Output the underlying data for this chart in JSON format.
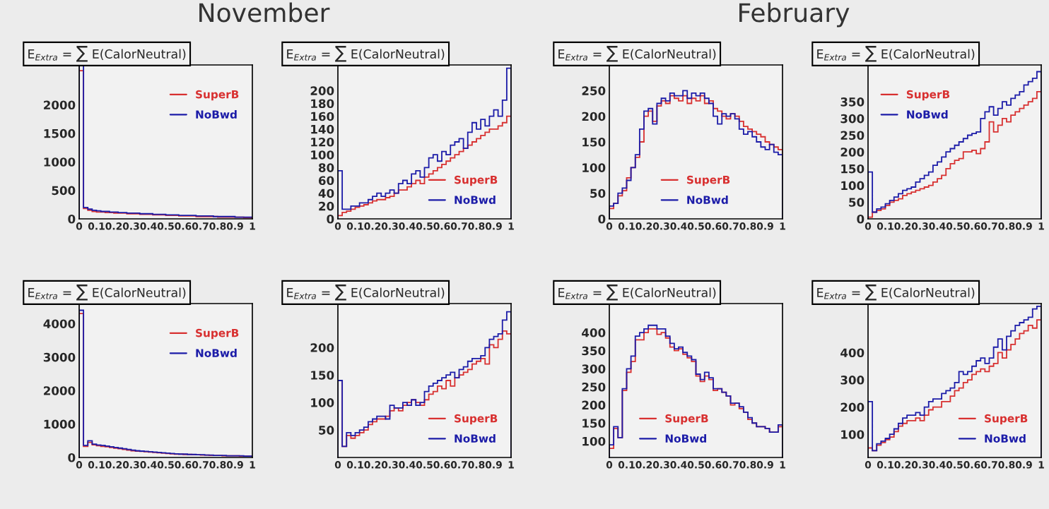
{
  "chart_data": [
    {
      "type": "histogram",
      "title": "E$_{Extra}$ = ∑ E(CalorNeutral)",
      "annotations": [
        "November"
      ],
      "legend": "top right",
      "xlim": [
        0,
        1
      ],
      "ylim": [
        0,
        2700
      ],
      "xticks": [
        0,
        0.1,
        0.2,
        0.3,
        0.4,
        0.5,
        0.6,
        0.7,
        0.8,
        0.9,
        1
      ],
      "yticks": [
        0,
        500,
        1000,
        1500,
        2000
      ],
      "bins": [
        0,
        0.025,
        0.05,
        0.075,
        0.1,
        0.125,
        0.15,
        0.175,
        0.2,
        0.225,
        0.25,
        0.275,
        0.3,
        0.325,
        0.35,
        0.375,
        0.4,
        0.425,
        0.45,
        0.475,
        0.5,
        0.525,
        0.55,
        0.575,
        0.6,
        0.625,
        0.65,
        0.675,
        0.7,
        0.725,
        0.75,
        0.775,
        0.8,
        0.825,
        0.85,
        0.875,
        0.9,
        0.925,
        0.95,
        0.975,
        1
      ],
      "series": [
        {
          "name": "SuperB",
          "color": "#d83030",
          "values": [
            2600,
            180,
            150,
            130,
            120,
            120,
            110,
            110,
            100,
            100,
            100,
            90,
            90,
            90,
            80,
            80,
            80,
            70,
            70,
            70,
            60,
            60,
            60,
            50,
            50,
            50,
            50,
            40,
            40,
            40,
            40,
            40,
            30,
            30,
            30,
            30,
            30,
            30,
            20,
            20
          ]
        },
        {
          "name": "NoBwd",
          "color": "#1c1ca8",
          "values": [
            2700,
            200,
            170,
            150,
            140,
            130,
            130,
            120,
            120,
            110,
            110,
            100,
            100,
            100,
            90,
            90,
            90,
            80,
            80,
            80,
            70,
            70,
            70,
            60,
            60,
            60,
            60,
            50,
            50,
            50,
            50,
            40,
            40,
            40,
            40,
            40,
            30,
            30,
            30,
            30
          ]
        }
      ]
    },
    {
      "type": "histogram",
      "title": "E$_{Extra}$ = ∑ E(CalorNeutral)",
      "legend": "bottom right",
      "xlim": [
        0,
        1
      ],
      "ylim": [
        0,
        240
      ],
      "xticks": [
        0,
        0.1,
        0.2,
        0.3,
        0.4,
        0.5,
        0.6,
        0.7,
        0.8,
        0.9,
        1
      ],
      "yticks": [
        0,
        20,
        40,
        60,
        80,
        100,
        120,
        140,
        160,
        180,
        200
      ],
      "bins": [
        0,
        0.025,
        0.05,
        0.075,
        0.1,
        0.125,
        0.15,
        0.175,
        0.2,
        0.225,
        0.25,
        0.275,
        0.3,
        0.325,
        0.35,
        0.375,
        0.4,
        0.425,
        0.45,
        0.475,
        0.5,
        0.525,
        0.55,
        0.575,
        0.6,
        0.625,
        0.65,
        0.675,
        0.7,
        0.725,
        0.75,
        0.775,
        0.8,
        0.825,
        0.85,
        0.875,
        0.9,
        0.925,
        0.95,
        0.975,
        1
      ],
      "series": [
        {
          "name": "SuperB",
          "color": "#d83030",
          "values": [
            5,
            10,
            12,
            15,
            18,
            20,
            22,
            25,
            28,
            30,
            30,
            33,
            35,
            40,
            45,
            45,
            50,
            55,
            60,
            55,
            65,
            70,
            75,
            80,
            85,
            90,
            95,
            100,
            105,
            110,
            115,
            120,
            125,
            130,
            135,
            140,
            140,
            145,
            150,
            160
          ]
        },
        {
          "name": "NoBwd",
          "color": "#1c1ca8",
          "values": [
            75,
            15,
            15,
            20,
            20,
            25,
            25,
            30,
            35,
            40,
            35,
            40,
            45,
            40,
            55,
            60,
            55,
            70,
            75,
            65,
            80,
            95,
            100,
            90,
            105,
            100,
            115,
            120,
            125,
            110,
            135,
            150,
            140,
            155,
            145,
            160,
            170,
            160,
            185,
            235
          ]
        }
      ]
    },
    {
      "type": "histogram",
      "title": "E$_{Extra}$ = ∑ E(CalorNeutral)",
      "annotations": [
        "February"
      ],
      "legend": "bottom",
      "xlim": [
        0,
        1
      ],
      "ylim": [
        0,
        300
      ],
      "xticks": [
        0,
        0.1,
        0.2,
        0.3,
        0.4,
        0.5,
        0.6,
        0.7,
        0.8,
        0.9,
        1
      ],
      "yticks": [
        0,
        50,
        100,
        150,
        200,
        250
      ],
      "bins": [
        0,
        0.025,
        0.05,
        0.075,
        0.1,
        0.125,
        0.15,
        0.175,
        0.2,
        0.225,
        0.25,
        0.275,
        0.3,
        0.325,
        0.35,
        0.375,
        0.4,
        0.425,
        0.45,
        0.475,
        0.5,
        0.525,
        0.55,
        0.575,
        0.6,
        0.625,
        0.65,
        0.675,
        0.7,
        0.725,
        0.75,
        0.775,
        0.8,
        0.825,
        0.85,
        0.875,
        0.9,
        0.925,
        0.95,
        0.975,
        1
      ],
      "series": [
        {
          "name": "SuperB",
          "color": "#d83030",
          "values": [
            20,
            30,
            45,
            55,
            80,
            100,
            120,
            150,
            200,
            210,
            190,
            220,
            230,
            225,
            240,
            235,
            230,
            240,
            225,
            235,
            230,
            240,
            225,
            230,
            215,
            210,
            200,
            195,
            205,
            200,
            190,
            180,
            175,
            170,
            165,
            160,
            150,
            145,
            140,
            135
          ]
        },
        {
          "name": "NoBwd",
          "color": "#1c1ca8",
          "values": [
            25,
            30,
            50,
            60,
            75,
            100,
            125,
            175,
            210,
            215,
            185,
            225,
            235,
            230,
            245,
            240,
            240,
            250,
            235,
            245,
            240,
            245,
            235,
            225,
            200,
            185,
            205,
            200,
            205,
            195,
            175,
            165,
            170,
            160,
            150,
            140,
            135,
            145,
            130,
            125
          ]
        }
      ]
    },
    {
      "type": "histogram",
      "title": "E$_{Extra}$ = ∑ E(CalorNeutral)",
      "legend": "top left",
      "xlim": [
        0,
        1
      ],
      "ylim": [
        0,
        460
      ],
      "xticks": [
        0,
        0.1,
        0.2,
        0.3,
        0.4,
        0.5,
        0.6,
        0.7,
        0.8,
        0.9,
        1
      ],
      "yticks": [
        0,
        50,
        100,
        150,
        200,
        250,
        300,
        350
      ],
      "bins": [
        0,
        0.025,
        0.05,
        0.075,
        0.1,
        0.125,
        0.15,
        0.175,
        0.2,
        0.225,
        0.25,
        0.275,
        0.3,
        0.325,
        0.35,
        0.375,
        0.4,
        0.425,
        0.45,
        0.475,
        0.5,
        0.525,
        0.55,
        0.575,
        0.6,
        0.625,
        0.65,
        0.675,
        0.7,
        0.725,
        0.75,
        0.775,
        0.8,
        0.825,
        0.85,
        0.875,
        0.9,
        0.925,
        0.95,
        0.975,
        1
      ],
      "series": [
        {
          "name": "SuperB",
          "color": "#d83030",
          "values": [
            5,
            20,
            25,
            30,
            40,
            50,
            55,
            60,
            70,
            75,
            80,
            85,
            90,
            95,
            100,
            110,
            120,
            130,
            150,
            165,
            175,
            180,
            200,
            200,
            205,
            195,
            210,
            230,
            290,
            260,
            280,
            300,
            290,
            310,
            320,
            330,
            340,
            350,
            360,
            380
          ]
        },
        {
          "name": "NoBwd",
          "color": "#1c1ca8",
          "values": [
            140,
            20,
            30,
            35,
            45,
            55,
            65,
            75,
            85,
            90,
            95,
            110,
            120,
            130,
            140,
            160,
            170,
            185,
            200,
            210,
            220,
            230,
            240,
            250,
            255,
            260,
            300,
            320,
            335,
            310,
            330,
            350,
            340,
            360,
            370,
            380,
            400,
            410,
            420,
            440
          ]
        }
      ]
    },
    {
      "type": "histogram",
      "title": "E$_{Extra}$ = ∑ E(CalorNeutral)",
      "legend": "top right",
      "xlim": [
        0,
        1
      ],
      "ylim": [
        0,
        4600
      ],
      "xticks": [
        0,
        0.1,
        0.2,
        0.3,
        0.4,
        0.5,
        0.6,
        0.7,
        0.8,
        0.9,
        1
      ],
      "yticks": [
        0,
        1000,
        2000,
        3000,
        4000
      ],
      "bins": [
        0,
        0.025,
        0.05,
        0.075,
        0.1,
        0.125,
        0.15,
        0.175,
        0.2,
        0.225,
        0.25,
        0.275,
        0.3,
        0.325,
        0.35,
        0.375,
        0.4,
        0.425,
        0.45,
        0.475,
        0.5,
        0.525,
        0.55,
        0.575,
        0.6,
        0.625,
        0.65,
        0.675,
        0.7,
        0.725,
        0.75,
        0.775,
        0.8,
        0.825,
        0.85,
        0.875,
        0.9,
        0.925,
        0.95,
        0.975,
        1
      ],
      "series": [
        {
          "name": "SuperB",
          "color": "#d83030",
          "values": [
            4300,
            330,
            450,
            380,
            350,
            330,
            320,
            300,
            280,
            260,
            240,
            220,
            200,
            190,
            180,
            170,
            160,
            150,
            140,
            130,
            120,
            110,
            100,
            100,
            90,
            90,
            80,
            80,
            70,
            70,
            60,
            60,
            60,
            50,
            50,
            50,
            50,
            40,
            40,
            40
          ]
        },
        {
          "name": "NoBwd",
          "color": "#1c1ca8",
          "values": [
            4400,
            360,
            500,
            400,
            370,
            360,
            340,
            320,
            300,
            280,
            260,
            240,
            220,
            200,
            190,
            180,
            170,
            160,
            150,
            140,
            130,
            120,
            110,
            100,
            100,
            90,
            90,
            80,
            80,
            70,
            70,
            60,
            60,
            60,
            50,
            50,
            50,
            50,
            40,
            40
          ]
        }
      ]
    },
    {
      "type": "histogram",
      "title": "E$_{Extra}$ = ∑ E(CalorNeutral)",
      "legend": "bottom right",
      "xlim": [
        0,
        1
      ],
      "ylim": [
        0,
        280
      ],
      "xticks": [
        0,
        0.1,
        0.2,
        0.3,
        0.4,
        0.5,
        0.6,
        0.7,
        0.8,
        0.9,
        1
      ],
      "yticks": [
        50,
        100,
        150,
        200
      ],
      "bins": [
        0,
        0.025,
        0.05,
        0.075,
        0.1,
        0.125,
        0.15,
        0.175,
        0.2,
        0.225,
        0.25,
        0.275,
        0.3,
        0.325,
        0.35,
        0.375,
        0.4,
        0.425,
        0.45,
        0.475,
        0.5,
        0.525,
        0.55,
        0.575,
        0.6,
        0.625,
        0.65,
        0.675,
        0.7,
        0.725,
        0.75,
        0.775,
        0.8,
        0.825,
        0.85,
        0.875,
        0.9,
        0.925,
        0.95,
        0.975,
        1
      ],
      "series": [
        {
          "name": "SuperB",
          "color": "#d83030",
          "values": [
            140,
            20,
            40,
            35,
            40,
            45,
            50,
            60,
            65,
            70,
            70,
            75,
            85,
            90,
            85,
            95,
            100,
            105,
            100,
            95,
            105,
            115,
            120,
            130,
            125,
            140,
            130,
            145,
            150,
            155,
            160,
            170,
            175,
            180,
            170,
            205,
            200,
            215,
            230,
            225
          ]
        },
        {
          "name": "NoBwd",
          "color": "#1c1ca8",
          "values": [
            140,
            20,
            45,
            40,
            45,
            50,
            55,
            65,
            70,
            75,
            75,
            70,
            95,
            90,
            90,
            100,
            95,
            105,
            95,
            100,
            120,
            130,
            135,
            140,
            145,
            150,
            155,
            145,
            160,
            165,
            175,
            180,
            180,
            185,
            200,
            215,
            220,
            225,
            250,
            265
          ]
        }
      ]
    },
    {
      "type": "histogram",
      "title": "E$_{Extra}$ = ∑ E(CalorNeutral)",
      "legend": "bottom left",
      "xlim": [
        0,
        1
      ],
      "ylim": [
        55,
        480
      ],
      "xticks": [
        0,
        0.1,
        0.2,
        0.3,
        0.4,
        0.5,
        0.6,
        0.7,
        0.8,
        0.9,
        1
      ],
      "yticks": [
        100,
        150,
        200,
        250,
        300,
        350,
        400
      ],
      "bins": [
        0,
        0.025,
        0.05,
        0.075,
        0.1,
        0.125,
        0.15,
        0.175,
        0.2,
        0.225,
        0.25,
        0.275,
        0.3,
        0.325,
        0.35,
        0.375,
        0.4,
        0.425,
        0.45,
        0.475,
        0.5,
        0.525,
        0.55,
        0.575,
        0.6,
        0.625,
        0.65,
        0.675,
        0.7,
        0.725,
        0.75,
        0.775,
        0.8,
        0.825,
        0.85,
        0.875,
        0.9,
        0.925,
        0.95,
        0.975,
        1
      ],
      "series": [
        {
          "name": "SuperB",
          "color": "#d83030",
          "values": [
            80,
            135,
            110,
            240,
            290,
            320,
            380,
            380,
            400,
            410,
            410,
            395,
            400,
            385,
            360,
            350,
            355,
            340,
            330,
            320,
            280,
            265,
            280,
            270,
            240,
            245,
            235,
            225,
            200,
            205,
            190,
            180,
            160,
            150,
            140,
            140,
            135,
            125,
            125,
            140
          ]
        },
        {
          "name": "NoBwd",
          "color": "#1c1ca8",
          "values": [
            90,
            140,
            110,
            245,
            300,
            335,
            390,
            400,
            410,
            420,
            420,
            410,
            410,
            390,
            370,
            355,
            360,
            345,
            335,
            325,
            285,
            270,
            290,
            275,
            245,
            245,
            235,
            225,
            205,
            205,
            195,
            180,
            165,
            150,
            140,
            140,
            135,
            125,
            125,
            145
          ]
        }
      ]
    },
    {
      "type": "histogram",
      "title": "E$_{Extra}$ = ∑ E(CalorNeutral)",
      "legend": "bottom right",
      "xlim": [
        0,
        1
      ],
      "ylim": [
        15,
        580
      ],
      "xticks": [
        0,
        0.1,
        0.2,
        0.3,
        0.4,
        0.5,
        0.6,
        0.7,
        0.8,
        0.9,
        1
      ],
      "yticks": [
        100,
        200,
        300,
        400
      ],
      "bins": [
        0,
        0.025,
        0.05,
        0.075,
        0.1,
        0.125,
        0.15,
        0.175,
        0.2,
        0.225,
        0.25,
        0.275,
        0.3,
        0.325,
        0.35,
        0.375,
        0.4,
        0.425,
        0.45,
        0.475,
        0.5,
        0.525,
        0.55,
        0.575,
        0.6,
        0.625,
        0.65,
        0.675,
        0.7,
        0.725,
        0.75,
        0.775,
        0.8,
        0.825,
        0.85,
        0.875,
        0.9,
        0.925,
        0.95,
        0.975,
        1
      ],
      "series": [
        {
          "name": "SuperB",
          "color": "#d83030",
          "values": [
            50,
            40,
            60,
            70,
            80,
            90,
            110,
            130,
            140,
            150,
            150,
            160,
            150,
            170,
            190,
            200,
            200,
            220,
            220,
            240,
            260,
            270,
            290,
            300,
            320,
            330,
            340,
            330,
            350,
            360,
            400,
            380,
            410,
            430,
            450,
            470,
            480,
            500,
            490,
            520
          ]
        },
        {
          "name": "NoBwd",
          "color": "#1c1ca8",
          "values": [
            220,
            40,
            65,
            75,
            85,
            100,
            120,
            140,
            160,
            170,
            170,
            180,
            170,
            200,
            220,
            230,
            230,
            250,
            260,
            270,
            290,
            330,
            320,
            330,
            350,
            370,
            380,
            360,
            380,
            420,
            450,
            410,
            460,
            480,
            500,
            510,
            520,
            530,
            560,
            570
          ]
        }
      ]
    }
  ]
}
